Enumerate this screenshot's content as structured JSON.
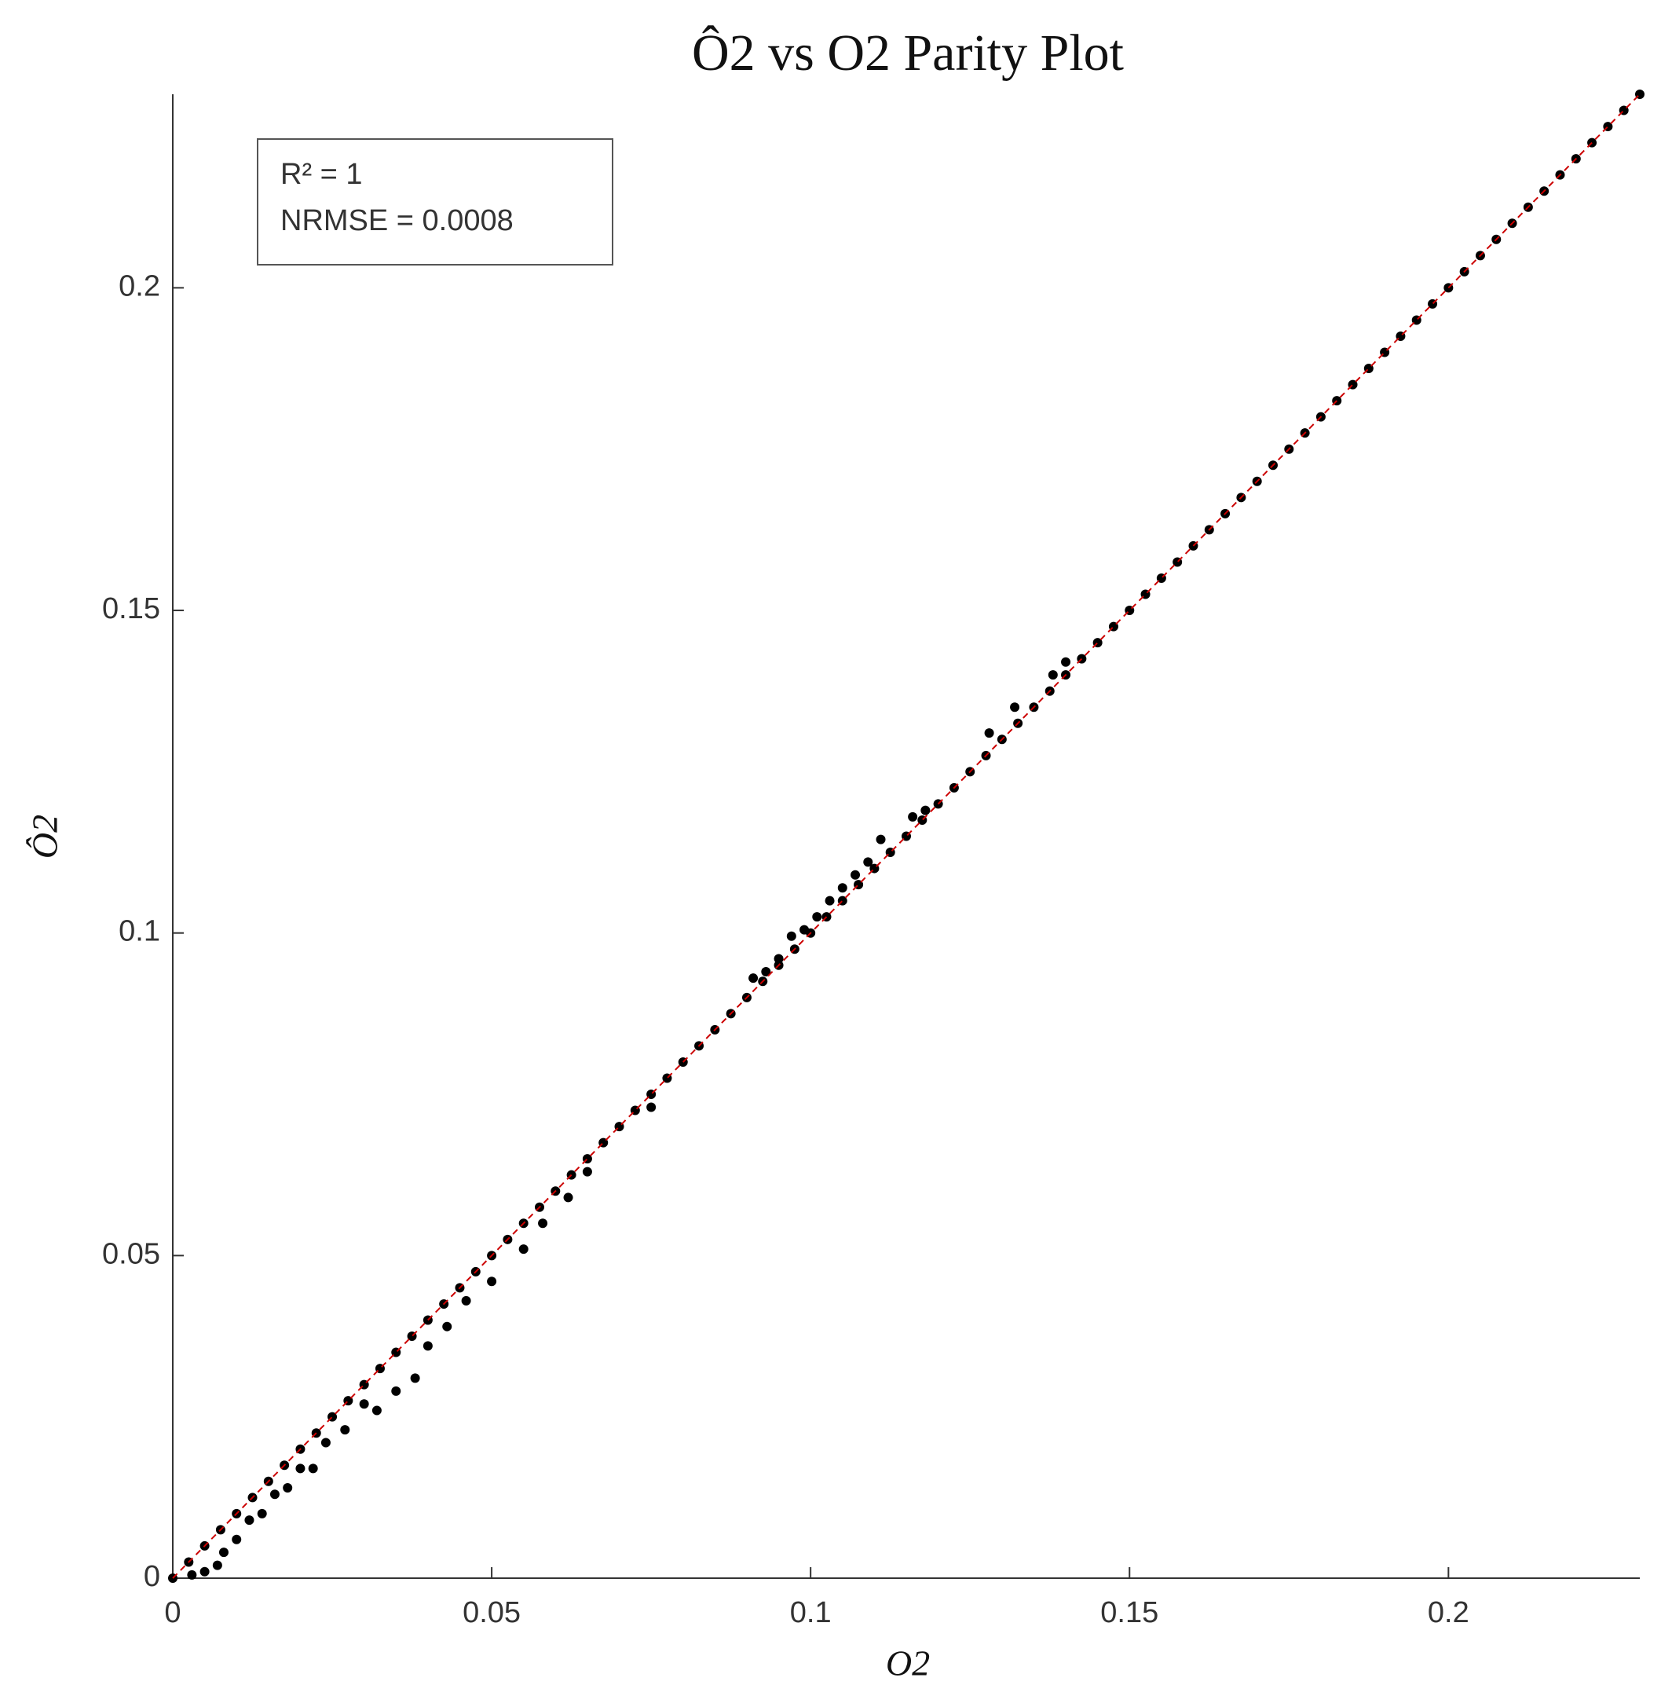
{
  "chart_data": {
    "type": "scatter",
    "title": "Ô2 vs O2 Parity Plot",
    "x_label": "O2",
    "y_label": "Ô2",
    "annotations": [
      "R² = 1",
      "NRMSE = 0.0008"
    ],
    "color": "#000000",
    "parity_line_color": "#cc0000",
    "xlim": [
      0,
      0.23
    ],
    "ylim": [
      0,
      0.23
    ],
    "xticks": [
      0,
      0.05,
      0.1,
      0.15,
      0.2
    ],
    "yticks": [
      0,
      0.05,
      0.1,
      0.15,
      0.2
    ],
    "x": [
      0,
      0.0025,
      0.005,
      0.0075,
      0.01,
      0.0125,
      0.015,
      0.0175,
      0.02,
      0.0225,
      0.025,
      0.0275,
      0.03,
      0.0325,
      0.035,
      0.0375,
      0.04,
      0.0425,
      0.045,
      0.0475,
      0.05,
      0.0525,
      0.055,
      0.0575,
      0.06,
      0.0625,
      0.065,
      0.0675,
      0.07,
      0.0725,
      0.075,
      0.0775,
      0.08,
      0.0825,
      0.085,
      0.0875,
      0.09,
      0.0925,
      0.095,
      0.0975,
      0.1,
      0.1025,
      0.105,
      0.1075,
      0.11,
      0.1125,
      0.115,
      0.1175,
      0.12,
      0.1225,
      0.125,
      0.1275,
      0.13,
      0.1325,
      0.135,
      0.1375,
      0.14,
      0.1425,
      0.145,
      0.1475,
      0.15,
      0.1525,
      0.155,
      0.1575,
      0.16,
      0.1625,
      0.165,
      0.1675,
      0.17,
      0.1725,
      0.175,
      0.1775,
      0.18,
      0.1825,
      0.185,
      0.1875,
      0.19,
      0.1925,
      0.195,
      0.1975,
      0.2,
      0.2025,
      0.205,
      0.2075,
      0.21,
      0.2125,
      0.215,
      0.2175,
      0.22,
      0.2225,
      0.225,
      0.2275,
      0.23,
      0.091,
      0.093,
      0.095,
      0.097,
      0.099,
      0.101,
      0.103,
      0.105,
      0.107,
      0.109,
      0.111,
      0.116,
      0.118,
      0.128,
      0.132,
      0.138,
      0.14,
      0.003,
      0.005,
      0.007,
      0.008,
      0.01,
      0.012,
      0.014,
      0.016,
      0.018,
      0.02,
      0.022,
      0.024,
      0.027,
      0.03,
      0.032,
      0.035,
      0.038,
      0.04,
      0.043,
      0.046,
      0.05,
      0.055,
      0.058,
      0.062,
      0.065,
      0.075
    ],
    "values": [
      0,
      0.0025,
      0.005,
      0.0075,
      0.01,
      0.0125,
      0.015,
      0.0175,
      0.02,
      0.0225,
      0.025,
      0.0275,
      0.03,
      0.0325,
      0.035,
      0.0375,
      0.04,
      0.0425,
      0.045,
      0.0475,
      0.05,
      0.0525,
      0.055,
      0.0575,
      0.06,
      0.0625,
      0.065,
      0.0675,
      0.07,
      0.0725,
      0.075,
      0.0775,
      0.08,
      0.0825,
      0.085,
      0.0875,
      0.09,
      0.0925,
      0.095,
      0.0975,
      0.1,
      0.1025,
      0.105,
      0.1075,
      0.11,
      0.1125,
      0.115,
      0.1175,
      0.12,
      0.1225,
      0.125,
      0.1275,
      0.13,
      0.1325,
      0.135,
      0.1375,
      0.14,
      0.1425,
      0.145,
      0.1475,
      0.15,
      0.1525,
      0.155,
      0.1575,
      0.16,
      0.1625,
      0.165,
      0.1675,
      0.17,
      0.1725,
      0.175,
      0.1775,
      0.18,
      0.1825,
      0.185,
      0.1875,
      0.19,
      0.1925,
      0.195,
      0.1975,
      0.2,
      0.2025,
      0.205,
      0.2075,
      0.21,
      0.2125,
      0.215,
      0.2175,
      0.22,
      0.2225,
      0.225,
      0.2275,
      0.23,
      0.093,
      0.094,
      0.096,
      0.0995,
      0.1005,
      0.1025,
      0.105,
      0.107,
      0.109,
      0.111,
      0.1145,
      0.118,
      0.119,
      0.131,
      0.135,
      0.14,
      0.142,
      0.0005,
      0.001,
      0.002,
      0.004,
      0.006,
      0.009,
      0.01,
      0.013,
      0.014,
      0.017,
      0.017,
      0.021,
      0.023,
      0.027,
      0.026,
      0.029,
      0.031,
      0.036,
      0.039,
      0.043,
      0.046,
      0.051,
      0.055,
      0.059,
      0.063,
      0.073
    ]
  }
}
